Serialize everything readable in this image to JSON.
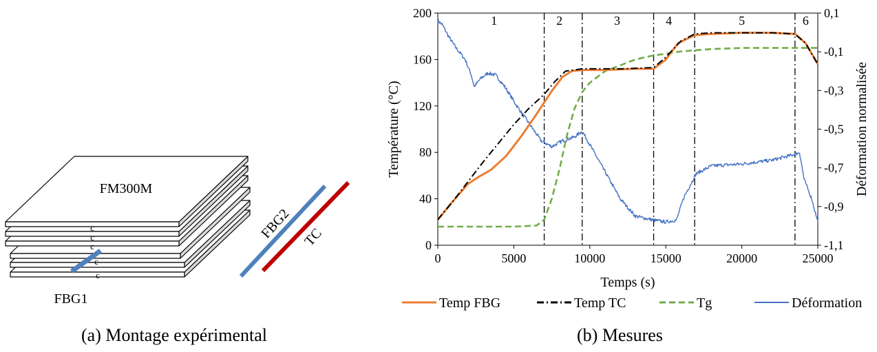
{
  "figure_left": {
    "caption": "(a) Montage expérimental",
    "labels": {
      "laminate": "FM300M",
      "ply_mark": "c",
      "fbg1": "FBG1",
      "fbg2": "FBG2",
      "tc": "TC"
    },
    "colors": {
      "fbg": "#4f81bd",
      "tc": "#c00000"
    }
  },
  "figure_right": {
    "caption": "(b) Mesures"
  },
  "chart_data": {
    "type": "line",
    "xlabel": "Temps (s)",
    "ylabel": "Température (°C)",
    "y2label": "Déformation normalisée",
    "xlim": [
      0,
      25000
    ],
    "ylim": [
      0,
      200
    ],
    "y2lim": [
      -1.1,
      0.1
    ],
    "xticks": [
      0,
      5000,
      10000,
      15000,
      20000,
      25000
    ],
    "xtick_labels": [
      "0",
      "5000",
      "10000",
      "15000",
      "20000",
      "25000"
    ],
    "yticks": [
      0,
      40,
      80,
      120,
      160,
      200
    ],
    "ytick_labels": [
      "0",
      "40",
      "80",
      "120",
      "160",
      "200"
    ],
    "y2ticks": [
      -1.1,
      -0.9,
      -0.7,
      -0.5,
      -0.3,
      -0.1,
      0.1
    ],
    "y2tick_labels": [
      "-1,1",
      "-0,9",
      "-0,7",
      "-0,5",
      "-0,3",
      "-0,1",
      "0,1"
    ],
    "phase_boundaries": [
      7000,
      9500,
      14200,
      16900,
      23500
    ],
    "phases": [
      {
        "label": "1",
        "x": 3700
      },
      {
        "label": "2",
        "x": 8000
      },
      {
        "label": "3",
        "x": 11800
      },
      {
        "label": "4",
        "x": 15200
      },
      {
        "label": "5",
        "x": 20000
      },
      {
        "label": "6",
        "x": 24200
      }
    ],
    "legend_position": "bottom",
    "series": [
      {
        "name": "Temp FBG",
        "axis": "left",
        "color": "#ed7d31",
        "style": "solid",
        "x": [
          0,
          1000,
          2000,
          2700,
          3500,
          4500,
          5500,
          6500,
          7500,
          8200,
          8800,
          9500,
          11000,
          13000,
          14200,
          15000,
          15800,
          16900,
          18000,
          20000,
          22000,
          23500,
          24200,
          25000
        ],
        "y": [
          22,
          38,
          53,
          59,
          65,
          77,
          94,
          113,
          133,
          145,
          150,
          151,
          151,
          152,
          152,
          160,
          174,
          181,
          182,
          183,
          183,
          182,
          174,
          156
        ]
      },
      {
        "name": "Temp TC",
        "axis": "left",
        "color": "#000000",
        "style": "dashdot",
        "x": [
          0,
          1000,
          2000,
          3000,
          4000,
          5000,
          6000,
          7000,
          7700,
          8400,
          9500,
          12000,
          14200,
          15000,
          16000,
          16900,
          18000,
          20000,
          22000,
          23500,
          24200,
          25000
        ],
        "y": [
          22,
          38,
          55,
          72,
          88,
          104,
          118,
          130,
          141,
          150,
          152,
          152,
          153,
          162,
          176,
          182,
          183,
          183,
          183,
          182,
          174,
          156
        ]
      },
      {
        "name": "Tg",
        "axis": "left",
        "color": "#70ad47",
        "style": "dashed",
        "x": [
          0,
          5000,
          6500,
          7000,
          7500,
          8000,
          8500,
          9000,
          9500,
          10000,
          11000,
          12000,
          13000,
          14000,
          15000,
          16000,
          17000,
          18000,
          20000,
          22000,
          23500,
          25000
        ],
        "y": [
          16,
          16,
          17,
          22,
          40,
          65,
          95,
          118,
          132,
          140,
          150,
          155,
          160,
          163,
          165,
          167,
          168,
          169,
          170,
          170,
          170,
          170
        ]
      },
      {
        "name": "Déformation",
        "axis": "right",
        "color": "#4472c4",
        "style": "solid",
        "x": [
          0,
          300,
          700,
          1200,
          1800,
          2200,
          2400,
          2800,
          3300,
          3800,
          4400,
          5200,
          6000,
          6800,
          7500,
          8200,
          9000,
          9500,
          10000,
          11000,
          12000,
          13000,
          14200,
          15000,
          15700,
          16200,
          17000,
          18000,
          20000,
          22000,
          23000,
          23500,
          23800,
          24100,
          24600,
          25000
        ],
        "y": [
          0.06,
          0.04,
          -0.02,
          -0.08,
          -0.14,
          -0.22,
          -0.28,
          -0.24,
          -0.21,
          -0.22,
          -0.28,
          -0.38,
          -0.47,
          -0.56,
          -0.59,
          -0.56,
          -0.54,
          -0.51,
          -0.58,
          -0.72,
          -0.86,
          -0.95,
          -0.97,
          -0.98,
          -0.97,
          -0.85,
          -0.73,
          -0.69,
          -0.68,
          -0.66,
          -0.64,
          -0.63,
          -0.62,
          -0.76,
          -0.86,
          -0.98
        ]
      }
    ]
  }
}
